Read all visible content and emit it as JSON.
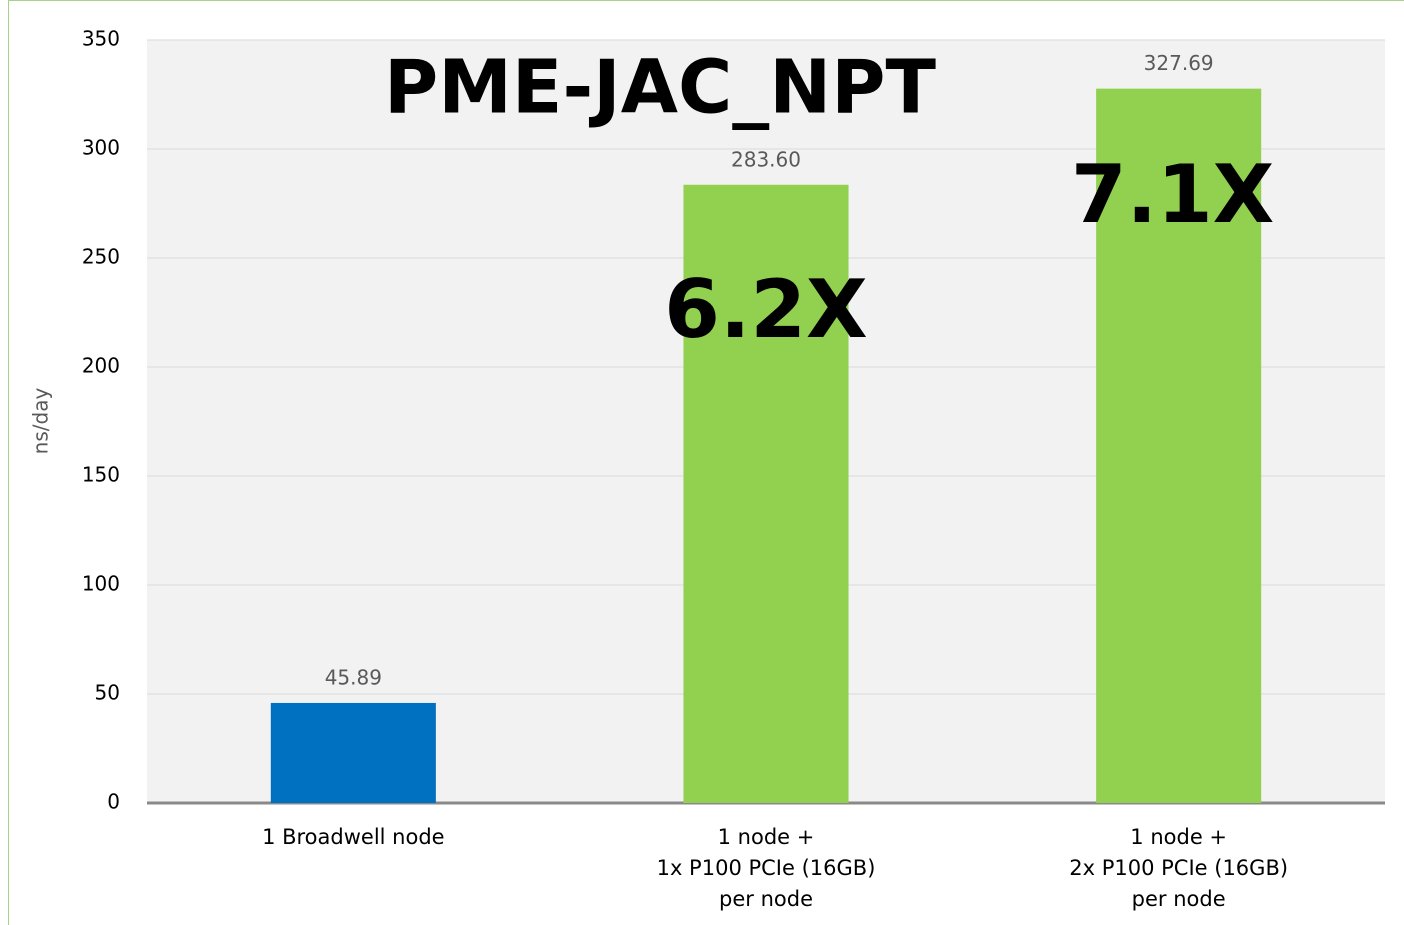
{
  "chart_data": {
    "type": "bar",
    "title": "PME-JAC_NPT",
    "y_label": "ns/day",
    "categories": [
      "1 Broadwell node",
      "1 node +\n1x P100 PCIe (16GB)\nper node",
      "1 node +\n2x P100 PCIe (16GB)\nper node"
    ],
    "values": [
      45.89,
      283.6,
      327.69
    ],
    "value_labels": [
      "45.89",
      "283.60",
      "327.69"
    ],
    "colors": [
      "#0070c0",
      "#92d050",
      "#92d050"
    ],
    "annotations": [
      "6.2X",
      "7.1X"
    ],
    "ylim": [
      0,
      350
    ],
    "yticks": [
      0,
      50,
      100,
      150,
      200,
      250,
      300,
      350
    ],
    "grid": true
  }
}
